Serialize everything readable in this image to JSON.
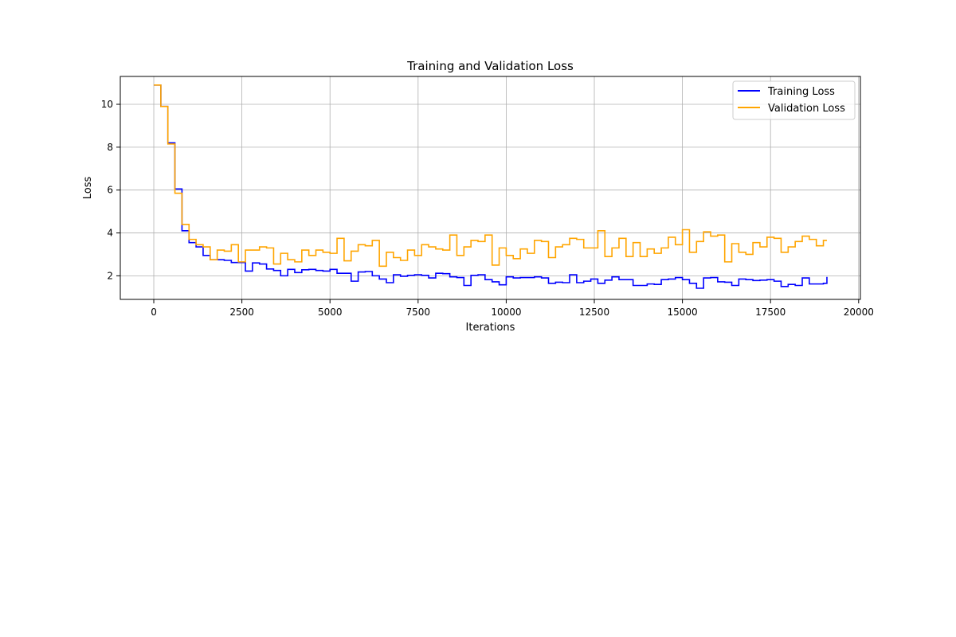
{
  "chart_data": {
    "type": "line",
    "title": "Training and Validation Loss",
    "xlabel": "Iterations",
    "ylabel": "Loss",
    "xlim": [
      -950,
      20050
    ],
    "ylim": [
      0.9,
      11.3
    ],
    "xticks": [
      0,
      2500,
      5000,
      7500,
      10000,
      12500,
      15000,
      17500,
      20000
    ],
    "yticks": [
      2,
      4,
      6,
      8,
      10
    ],
    "grid": true,
    "legend_position": "top-right",
    "series": [
      {
        "name": "Training Loss",
        "color": "#0000ff",
        "step": true,
        "x": [
          0,
          200,
          400,
          600,
          800,
          1000,
          1200,
          1400,
          1600,
          1800,
          2000,
          2200,
          2400,
          2600,
          2800,
          3000,
          3200,
          3400,
          3600,
          3800,
          4000,
          4200,
          4400,
          4600,
          4800,
          5000,
          5200,
          5400,
          5600,
          5800,
          6000,
          6200,
          6400,
          6600,
          6800,
          7000,
          7200,
          7400,
          7600,
          7800,
          8000,
          8200,
          8400,
          8600,
          8800,
          9000,
          9200,
          9400,
          9600,
          9800,
          10000,
          10200,
          10400,
          10600,
          10800,
          11000,
          11200,
          11400,
          11600,
          11800,
          12000,
          12200,
          12400,
          12600,
          12800,
          13000,
          13200,
          13400,
          13600,
          13800,
          14000,
          14200,
          14400,
          14600,
          14800,
          15000,
          15200,
          15400,
          15600,
          15800,
          16000,
          16200,
          16400,
          16600,
          16800,
          17000,
          17200,
          17400,
          17600,
          17800,
          18000,
          18200,
          18400,
          18600,
          18800,
          19000,
          19100
        ],
        "values": [
          10.9,
          9.9,
          8.2,
          6.05,
          4.1,
          3.55,
          3.35,
          2.95,
          2.75,
          2.75,
          2.72,
          2.62,
          2.62,
          2.22,
          2.6,
          2.55,
          2.32,
          2.25,
          2.0,
          2.3,
          2.15,
          2.28,
          2.3,
          2.25,
          2.22,
          2.3,
          2.12,
          2.12,
          1.75,
          2.18,
          2.2,
          2.0,
          1.85,
          1.68,
          2.05,
          1.98,
          2.02,
          2.05,
          2.02,
          1.9,
          2.12,
          2.1,
          1.95,
          1.92,
          1.55,
          2.02,
          2.05,
          1.82,
          1.72,
          1.58,
          1.95,
          1.9,
          1.92,
          1.92,
          1.95,
          1.9,
          1.65,
          1.7,
          1.68,
          2.05,
          1.68,
          1.75,
          1.85,
          1.65,
          1.8,
          1.95,
          1.82,
          1.82,
          1.55,
          1.55,
          1.62,
          1.6,
          1.82,
          1.85,
          1.92,
          1.82,
          1.65,
          1.42,
          1.9,
          1.92,
          1.72,
          1.7,
          1.55,
          1.85,
          1.82,
          1.78,
          1.8,
          1.82,
          1.75,
          1.5,
          1.6,
          1.55,
          1.9,
          1.62,
          1.62,
          1.65,
          1.95
        ]
      },
      {
        "name": "Validation Loss",
        "color": "#ffa500",
        "step": true,
        "x": [
          0,
          200,
          400,
          600,
          800,
          1000,
          1200,
          1400,
          1600,
          1800,
          2000,
          2200,
          2400,
          2600,
          2800,
          3000,
          3200,
          3400,
          3600,
          3800,
          4000,
          4200,
          4400,
          4600,
          4800,
          5000,
          5200,
          5400,
          5600,
          5800,
          6000,
          6200,
          6400,
          6600,
          6800,
          7000,
          7200,
          7400,
          7600,
          7800,
          8000,
          8200,
          8400,
          8600,
          8800,
          9000,
          9200,
          9400,
          9600,
          9800,
          10000,
          10200,
          10400,
          10600,
          10800,
          11000,
          11200,
          11400,
          11600,
          11800,
          12000,
          12200,
          12400,
          12600,
          12800,
          13000,
          13200,
          13400,
          13600,
          13800,
          14000,
          14200,
          14400,
          14600,
          14800,
          15000,
          15200,
          15400,
          15600,
          15800,
          16000,
          16200,
          16400,
          16600,
          16800,
          17000,
          17200,
          17400,
          17600,
          17800,
          18000,
          18200,
          18400,
          18600,
          18800,
          19000,
          19100
        ],
        "values": [
          10.9,
          9.9,
          8.15,
          5.85,
          4.4,
          3.7,
          3.45,
          3.35,
          2.75,
          3.2,
          3.15,
          3.45,
          2.65,
          3.2,
          3.2,
          3.35,
          3.3,
          2.55,
          3.05,
          2.75,
          2.65,
          3.2,
          2.95,
          3.2,
          3.1,
          3.05,
          3.75,
          2.7,
          3.15,
          3.45,
          3.4,
          3.65,
          2.45,
          3.1,
          2.85,
          2.72,
          3.2,
          2.95,
          3.45,
          3.35,
          3.25,
          3.2,
          3.9,
          2.95,
          3.35,
          3.65,
          3.6,
          3.9,
          2.5,
          3.3,
          2.95,
          2.8,
          3.25,
          3.05,
          3.65,
          3.6,
          2.85,
          3.35,
          3.45,
          3.75,
          3.7,
          3.3,
          3.3,
          4.1,
          2.9,
          3.3,
          3.75,
          2.9,
          3.55,
          2.9,
          3.25,
          3.05,
          3.3,
          3.8,
          3.45,
          4.15,
          3.1,
          3.6,
          4.05,
          3.85,
          3.9,
          2.65,
          3.5,
          3.1,
          3.0,
          3.55,
          3.35,
          3.8,
          3.75,
          3.1,
          3.35,
          3.6,
          3.85,
          3.7,
          3.4,
          3.65,
          3.65
        ]
      }
    ]
  }
}
